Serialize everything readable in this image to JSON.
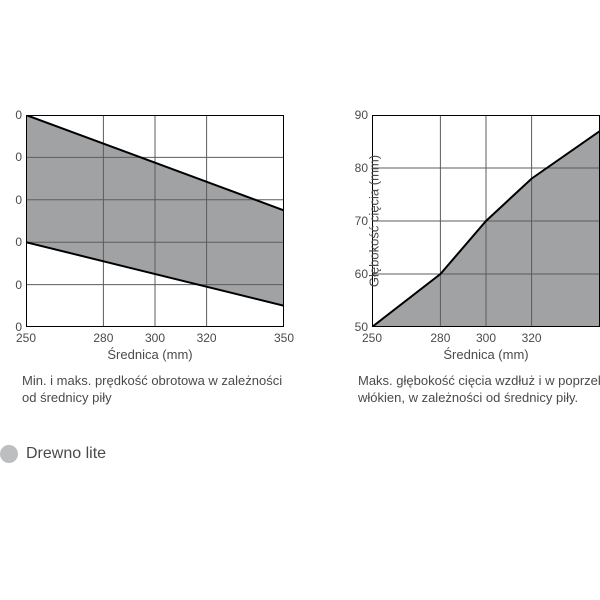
{
  "global": {
    "background_color": "#ffffff",
    "text_color": "#4a4a4a",
    "font_family": "Arial, Helvetica, sans-serif"
  },
  "chart_left": {
    "type": "area-band",
    "xlabel": "Średnica (mm)",
    "x_ticks": [
      250,
      280,
      300,
      320,
      350
    ],
    "y_ticks": [
      "0",
      "0",
      "0",
      "0",
      "0",
      "0"
    ],
    "xlim": [
      250,
      350
    ],
    "y_visible_ticks": 6,
    "series": {
      "upper": [
        {
          "x": 250,
          "y_idx": 5.0
        },
        {
          "x": 350,
          "y_idx": 2.75
        }
      ],
      "lower": [
        {
          "x": 250,
          "y_idx": 2.0
        },
        {
          "x": 350,
          "y_idx": 0.5
        }
      ]
    },
    "fill_color": "#a1a2a4",
    "line_color": "#000000",
    "line_width": 2,
    "grid_color": "#5c5c5c",
    "grid_width": 1,
    "border_color": "#000000",
    "caption_line1": "Min. i maks. prędkość obrotowa w zależności",
    "caption_line2": "od średnicy piły",
    "label_fontsize": 13,
    "tick_fontsize": 12
  },
  "chart_right": {
    "type": "area",
    "xlabel": "Średnica (mm)",
    "ylabel": "Głębokość cięcia (mm)",
    "x_ticks": [
      250,
      280,
      300,
      320
    ],
    "y_ticks": [
      50,
      60,
      70,
      80,
      90
    ],
    "xlim": [
      250,
      350
    ],
    "ylim": [
      50,
      90
    ],
    "series": [
      {
        "x": 250,
        "y": 50
      },
      {
        "x": 280,
        "y": 60
      },
      {
        "x": 300,
        "y": 70
      },
      {
        "x": 320,
        "y": 78
      },
      {
        "x": 350,
        "y": 87
      }
    ],
    "fill_color": "#a1a2a4",
    "line_color": "#000000",
    "line_width": 2,
    "grid_color": "#5c5c5c",
    "grid_width": 1,
    "border_color": "#000000",
    "caption_line1": "Maks. głębokość cięcia wzdłuż i w poprzek",
    "caption_line2": "włókien, w zależności od średnicy piły.",
    "label_fontsize": 13,
    "tick_fontsize": 12
  },
  "legend": {
    "swatch_color": "#bdbebf",
    "label": "Drewno lite",
    "fontsize": 13
  }
}
